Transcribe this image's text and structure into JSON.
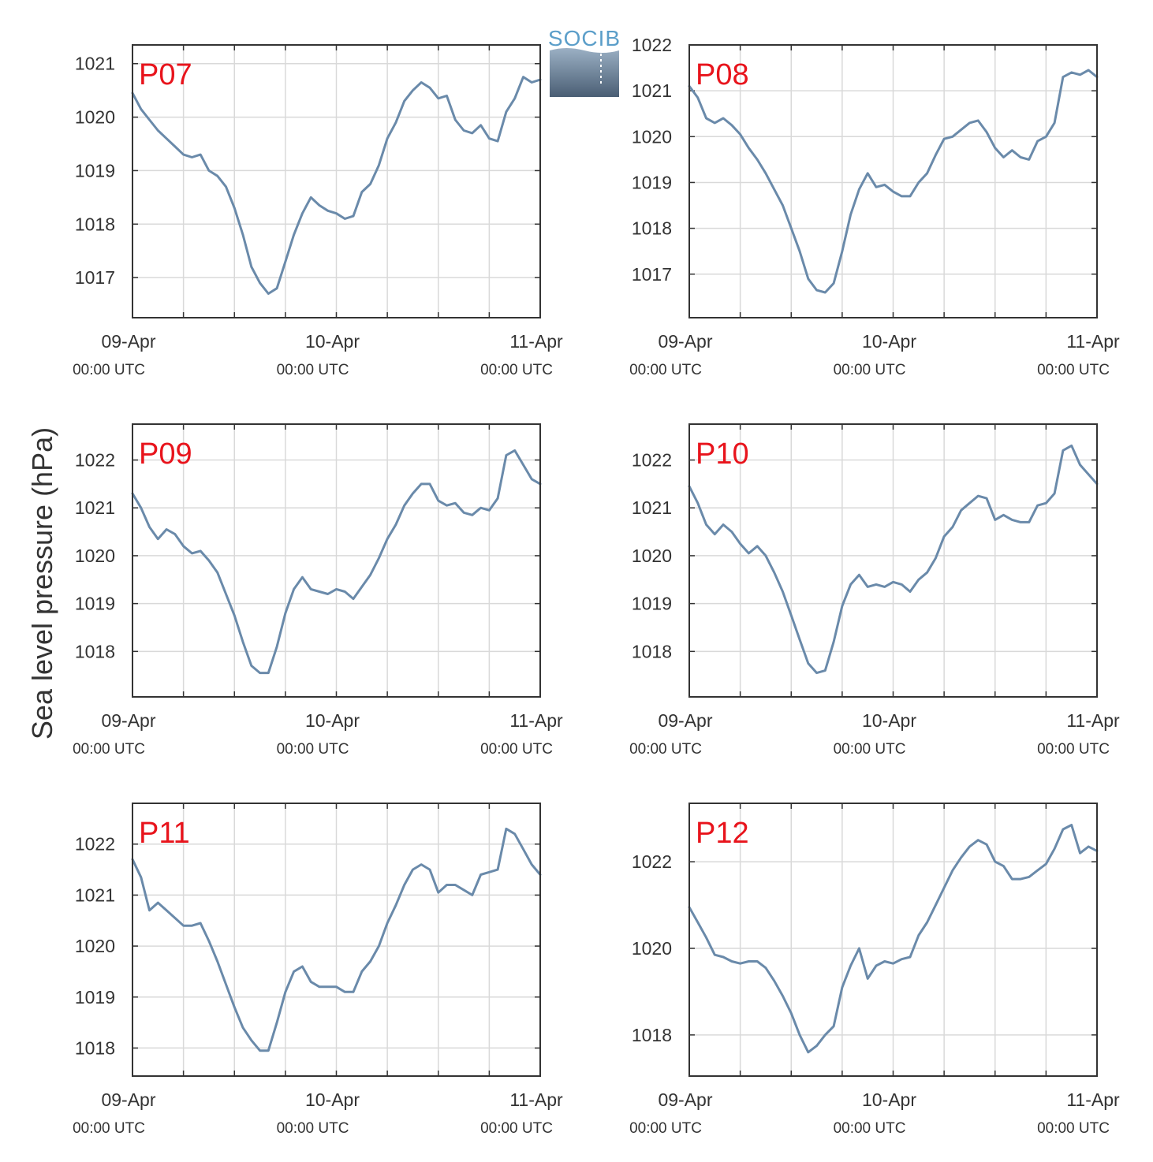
{
  "figure": {
    "ylabel": "Sea level pressure (hPa)",
    "logo_text": "SOCIB",
    "colors": {
      "line": "#6a8aaa",
      "panel_label": "#e8141c",
      "grid": "#d9d9d9",
      "axis": "#333333"
    }
  },
  "chart_data": [
    {
      "type": "line",
      "panel": "P07",
      "x_ticks": [
        {
          "main": "09-Apr",
          "sub": "00:00 UTC"
        },
        {
          "main": "10-Apr",
          "sub": "00:00 UTC"
        },
        {
          "main": "11-Apr",
          "sub": "00:00 UTC"
        }
      ],
      "xlim": [
        0,
        48
      ],
      "ylim": [
        1016.25,
        1021.35
      ],
      "y_ticks": [
        1017,
        1018,
        1019,
        1020,
        1021
      ],
      "x": [
        0,
        1,
        2,
        3,
        4,
        5,
        6,
        7,
        8,
        9,
        10,
        11,
        12,
        13,
        14,
        15,
        16,
        17,
        18,
        19,
        20,
        21,
        22,
        23,
        24,
        25,
        26,
        27,
        28,
        29,
        30,
        31,
        32,
        33,
        34,
        35,
        36,
        37,
        38,
        39,
        40,
        41,
        42,
        43,
        44,
        45,
        46,
        47,
        48
      ],
      "values": [
        1020.45,
        1020.15,
        1019.95,
        1019.75,
        1019.6,
        1019.45,
        1019.3,
        1019.25,
        1019.3,
        1019.0,
        1018.9,
        1018.7,
        1018.3,
        1017.8,
        1017.2,
        1016.9,
        1016.7,
        1016.8,
        1017.3,
        1017.8,
        1018.2,
        1018.5,
        1018.35,
        1018.25,
        1018.2,
        1018.1,
        1018.15,
        1018.6,
        1018.75,
        1019.1,
        1019.6,
        1019.9,
        1020.3,
        1020.5,
        1020.65,
        1020.55,
        1020.35,
        1020.4,
        1019.95,
        1019.75,
        1019.7,
        1019.85,
        1019.6,
        1019.55,
        1020.1,
        1020.35,
        1020.75,
        1020.65,
        1020.7
      ]
    },
    {
      "type": "line",
      "panel": "P08",
      "x_ticks": [
        {
          "main": "09-Apr",
          "sub": "00:00 UTC"
        },
        {
          "main": "10-Apr",
          "sub": "00:00 UTC"
        },
        {
          "main": "11-Apr",
          "sub": "00:00 UTC"
        }
      ],
      "xlim": [
        0,
        48
      ],
      "ylim": [
        1016.05,
        1022.0
      ],
      "y_ticks": [
        1017,
        1018,
        1019,
        1020,
        1021,
        1022
      ],
      "x": [
        0,
        1,
        2,
        3,
        4,
        5,
        6,
        7,
        8,
        9,
        10,
        11,
        12,
        13,
        14,
        15,
        16,
        17,
        18,
        19,
        20,
        21,
        22,
        23,
        24,
        25,
        26,
        27,
        28,
        29,
        30,
        31,
        32,
        33,
        34,
        35,
        36,
        37,
        38,
        39,
        40,
        41,
        42,
        43,
        44,
        45,
        46,
        47,
        48
      ],
      "values": [
        1021.1,
        1020.85,
        1020.4,
        1020.3,
        1020.4,
        1020.25,
        1020.05,
        1019.75,
        1019.5,
        1019.2,
        1018.85,
        1018.5,
        1018.0,
        1017.5,
        1016.9,
        1016.65,
        1016.6,
        1016.8,
        1017.5,
        1018.3,
        1018.85,
        1019.2,
        1018.9,
        1018.95,
        1018.8,
        1018.7,
        1018.7,
        1019.0,
        1019.2,
        1019.6,
        1019.95,
        1020.0,
        1020.15,
        1020.3,
        1020.35,
        1020.1,
        1019.75,
        1019.55,
        1019.7,
        1019.55,
        1019.5,
        1019.9,
        1020.0,
        1020.3,
        1021.3,
        1021.4,
        1021.35,
        1021.45,
        1021.3
      ]
    },
    {
      "type": "line",
      "panel": "P09",
      "x_ticks": [
        {
          "main": "09-Apr",
          "sub": "00:00 UTC"
        },
        {
          "main": "10-Apr",
          "sub": "00:00 UTC"
        },
        {
          "main": "11-Apr",
          "sub": "00:00 UTC"
        }
      ],
      "xlim": [
        0,
        48
      ],
      "ylim": [
        1017.05,
        1022.75
      ],
      "y_ticks": [
        1018,
        1019,
        1020,
        1021,
        1022
      ],
      "x": [
        0,
        1,
        2,
        3,
        4,
        5,
        6,
        7,
        8,
        9,
        10,
        11,
        12,
        13,
        14,
        15,
        16,
        17,
        18,
        19,
        20,
        21,
        22,
        23,
        24,
        25,
        26,
        27,
        28,
        29,
        30,
        31,
        32,
        33,
        34,
        35,
        36,
        37,
        38,
        39,
        40,
        41,
        42,
        43,
        44,
        45,
        46,
        47,
        48
      ],
      "values": [
        1021.3,
        1021.0,
        1020.6,
        1020.35,
        1020.55,
        1020.45,
        1020.2,
        1020.05,
        1020.1,
        1019.9,
        1019.65,
        1019.2,
        1018.75,
        1018.2,
        1017.7,
        1017.55,
        1017.55,
        1018.1,
        1018.8,
        1019.3,
        1019.55,
        1019.3,
        1019.25,
        1019.2,
        1019.3,
        1019.25,
        1019.1,
        1019.35,
        1019.6,
        1019.95,
        1020.35,
        1020.65,
        1021.05,
        1021.3,
        1021.5,
        1021.5,
        1021.15,
        1021.05,
        1021.1,
        1020.9,
        1020.85,
        1021.0,
        1020.95,
        1021.2,
        1022.1,
        1022.2,
        1021.9,
        1021.6,
        1021.5
      ]
    },
    {
      "type": "line",
      "panel": "P10",
      "x_ticks": [
        {
          "main": "09-Apr",
          "sub": "00:00 UTC"
        },
        {
          "main": "10-Apr",
          "sub": "00:00 UTC"
        },
        {
          "main": "11-Apr",
          "sub": "00:00 UTC"
        }
      ],
      "xlim": [
        0,
        48
      ],
      "ylim": [
        1017.05,
        1022.75
      ],
      "y_ticks": [
        1018,
        1019,
        1020,
        1021,
        1022
      ],
      "x": [
        0,
        1,
        2,
        3,
        4,
        5,
        6,
        7,
        8,
        9,
        10,
        11,
        12,
        13,
        14,
        15,
        16,
        17,
        18,
        19,
        20,
        21,
        22,
        23,
        24,
        25,
        26,
        27,
        28,
        29,
        30,
        31,
        32,
        33,
        34,
        35,
        36,
        37,
        38,
        39,
        40,
        41,
        42,
        43,
        44,
        45,
        46,
        47,
        48
      ],
      "values": [
        1021.45,
        1021.1,
        1020.65,
        1020.45,
        1020.65,
        1020.5,
        1020.25,
        1020.05,
        1020.2,
        1020.0,
        1019.65,
        1019.25,
        1018.75,
        1018.25,
        1017.75,
        1017.55,
        1017.6,
        1018.2,
        1018.95,
        1019.4,
        1019.6,
        1019.35,
        1019.4,
        1019.35,
        1019.45,
        1019.4,
        1019.25,
        1019.5,
        1019.65,
        1019.95,
        1020.4,
        1020.6,
        1020.95,
        1021.1,
        1021.25,
        1021.2,
        1020.75,
        1020.85,
        1020.75,
        1020.7,
        1020.7,
        1021.05,
        1021.1,
        1021.3,
        1022.2,
        1022.3,
        1021.9,
        1021.7,
        1021.5
      ]
    },
    {
      "type": "line",
      "panel": "P11",
      "x_ticks": [
        {
          "main": "09-Apr",
          "sub": "00:00 UTC"
        },
        {
          "main": "10-Apr",
          "sub": "00:00 UTC"
        },
        {
          "main": "11-Apr",
          "sub": "00:00 UTC"
        }
      ],
      "xlim": [
        0,
        48
      ],
      "ylim": [
        1017.45,
        1022.8
      ],
      "y_ticks": [
        1018,
        1019,
        1020,
        1021,
        1022
      ],
      "x": [
        0,
        1,
        2,
        3,
        4,
        5,
        6,
        7,
        8,
        9,
        10,
        11,
        12,
        13,
        14,
        15,
        16,
        17,
        18,
        19,
        20,
        21,
        22,
        23,
        24,
        25,
        26,
        27,
        28,
        29,
        30,
        31,
        32,
        33,
        34,
        35,
        36,
        37,
        38,
        39,
        40,
        41,
        42,
        43,
        44,
        45,
        46,
        47,
        48
      ],
      "values": [
        1021.7,
        1021.35,
        1020.7,
        1020.85,
        1020.7,
        1020.55,
        1020.4,
        1020.4,
        1020.45,
        1020.1,
        1019.7,
        1019.25,
        1018.8,
        1018.4,
        1018.15,
        1017.95,
        1017.95,
        1018.5,
        1019.1,
        1019.5,
        1019.6,
        1019.3,
        1019.2,
        1019.2,
        1019.2,
        1019.1,
        1019.1,
        1019.5,
        1019.7,
        1020.0,
        1020.45,
        1020.8,
        1021.2,
        1021.5,
        1021.6,
        1021.5,
        1021.05,
        1021.2,
        1021.2,
        1021.1,
        1021.0,
        1021.4,
        1021.45,
        1021.5,
        1022.3,
        1022.2,
        1021.9,
        1021.6,
        1021.4
      ]
    },
    {
      "type": "line",
      "panel": "P12",
      "x_ticks": [
        {
          "main": "09-Apr",
          "sub": "00:00 UTC"
        },
        {
          "main": "10-Apr",
          "sub": "00:00 UTC"
        },
        {
          "main": "11-Apr",
          "sub": "00:00 UTC"
        }
      ],
      "xlim": [
        0,
        48
      ],
      "ylim": [
        1017.05,
        1023.35
      ],
      "y_ticks": [
        1018,
        1020,
        1022
      ],
      "x": [
        0,
        1,
        2,
        3,
        4,
        5,
        6,
        7,
        8,
        9,
        10,
        11,
        12,
        13,
        14,
        15,
        16,
        17,
        18,
        19,
        20,
        21,
        22,
        23,
        24,
        25,
        26,
        27,
        28,
        29,
        30,
        31,
        32,
        33,
        34,
        35,
        36,
        37,
        38,
        39,
        40,
        41,
        42,
        43,
        44,
        45,
        46,
        47,
        48
      ],
      "values": [
        1020.95,
        1020.6,
        1020.25,
        1019.85,
        1019.8,
        1019.7,
        1019.65,
        1019.7,
        1019.7,
        1019.55,
        1019.25,
        1018.9,
        1018.5,
        1018.0,
        1017.6,
        1017.75,
        1018.0,
        1018.2,
        1019.1,
        1019.6,
        1020.0,
        1019.3,
        1019.6,
        1019.7,
        1019.65,
        1019.75,
        1019.8,
        1020.3,
        1020.6,
        1021.0,
        1021.4,
        1021.8,
        1022.1,
        1022.35,
        1022.5,
        1022.4,
        1022.0,
        1021.9,
        1021.6,
        1021.6,
        1021.65,
        1021.8,
        1021.95,
        1022.3,
        1022.75,
        1022.85,
        1022.2,
        1022.35,
        1022.25
      ]
    }
  ]
}
